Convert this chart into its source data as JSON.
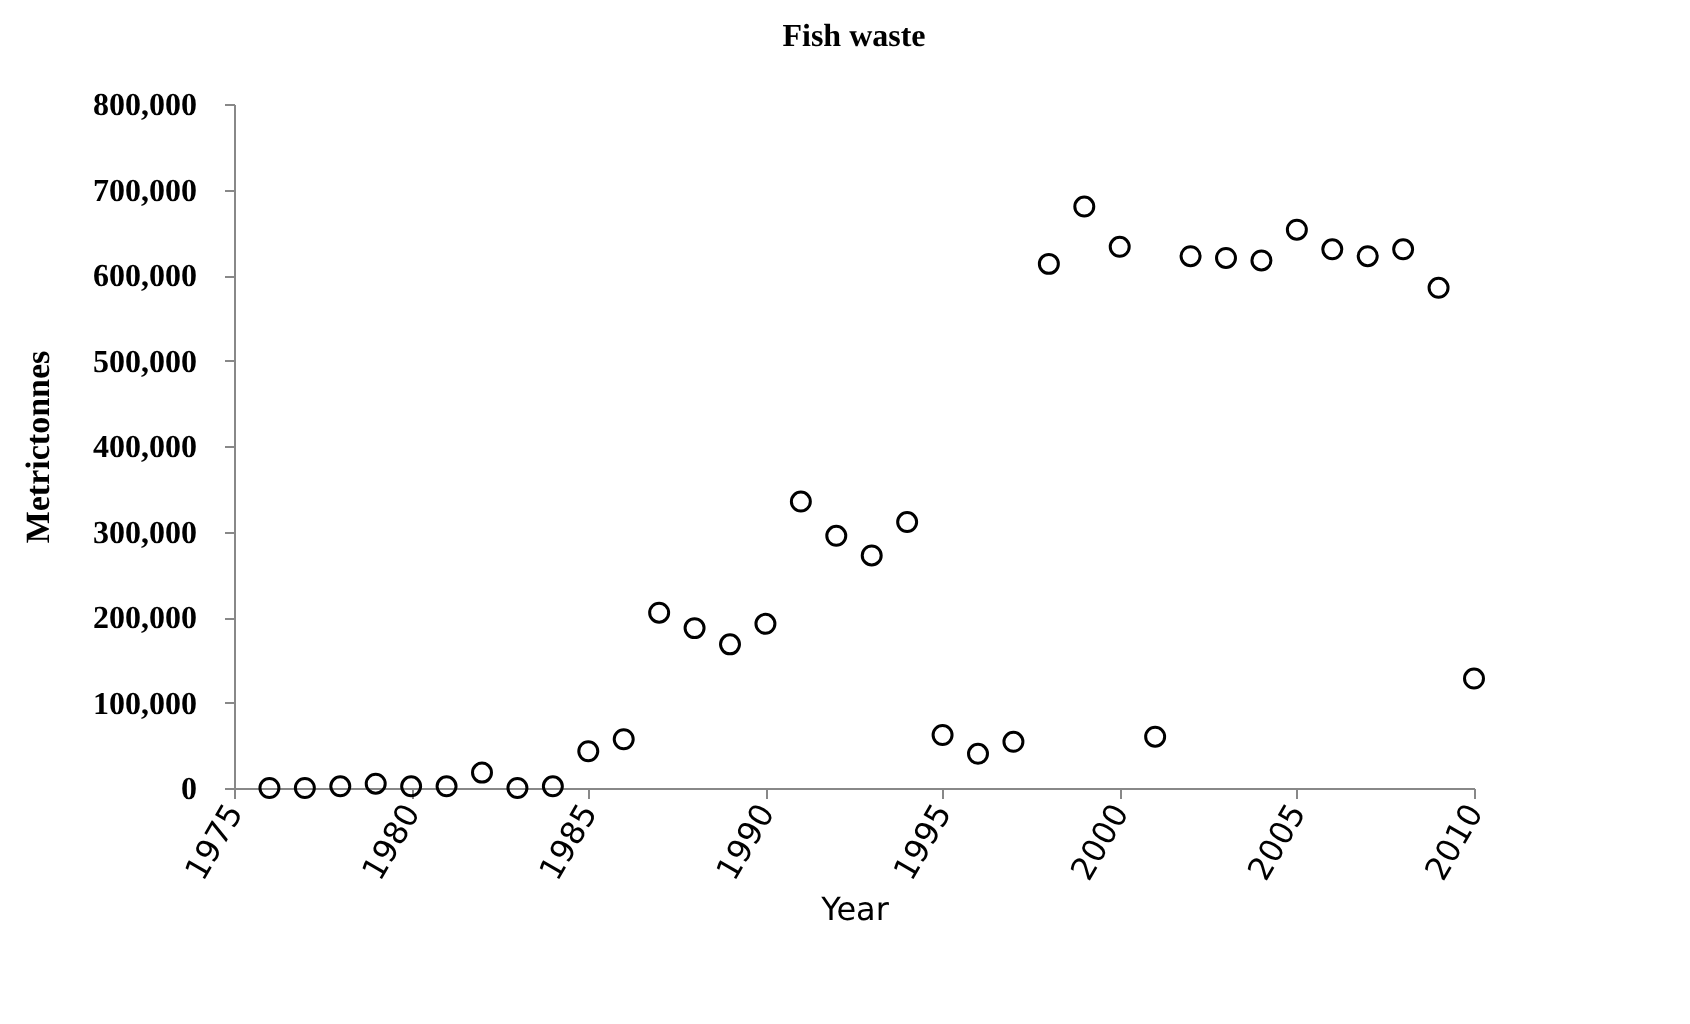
{
  "chart_data": {
    "type": "scatter",
    "title": "Fish waste",
    "xlabel": "Year",
    "ylabel": "Metrictonnes",
    "x": [
      1976,
      1977,
      1978,
      1979,
      1980,
      1981,
      1982,
      1983,
      1984,
      1985,
      1986,
      1987,
      1988,
      1989,
      1990,
      1991,
      1992,
      1993,
      1994,
      1995,
      1996,
      1997,
      1998,
      1999,
      2000,
      2001,
      2002,
      2003,
      2004,
      2005,
      2006,
      2007,
      2008,
      2009,
      2010
    ],
    "series": [
      {
        "color": "#000000",
        "values": [
          0,
          0,
          2000,
          5000,
          2000,
          2000,
          18000,
          0,
          2000,
          43000,
          57000,
          205000,
          187000,
          168000,
          192000,
          335000,
          295000,
          272000,
          311000,
          62000,
          40000,
          54000,
          613000,
          680000,
          633000,
          60000,
          622000,
          620000,
          617000,
          653000,
          630000,
          622000,
          630000,
          585000,
          128000
        ]
      }
    ],
    "xlim": [
      1975,
      2010
    ],
    "xticks": [
      1975,
      1980,
      1985,
      1990,
      1995,
      2000,
      2005,
      2010
    ],
    "ylim": [
      0,
      800000
    ],
    "yticks": [
      0,
      {
        "value": 100000,
        "label": "100,000"
      },
      {
        "value": 200000,
        "label": "200,000"
      },
      {
        "value": 300000,
        "label": "300,000"
      },
      {
        "value": 400000,
        "label": "400,000"
      },
      {
        "value": 500000,
        "label": "500,000"
      },
      {
        "value": 600000,
        "label": "600,000"
      },
      {
        "value": 700000,
        "label": "700,000"
      },
      {
        "value": 800000,
        "label": "800,000"
      }
    ],
    "grid": false,
    "legend": false,
    "marker": "circle"
  }
}
